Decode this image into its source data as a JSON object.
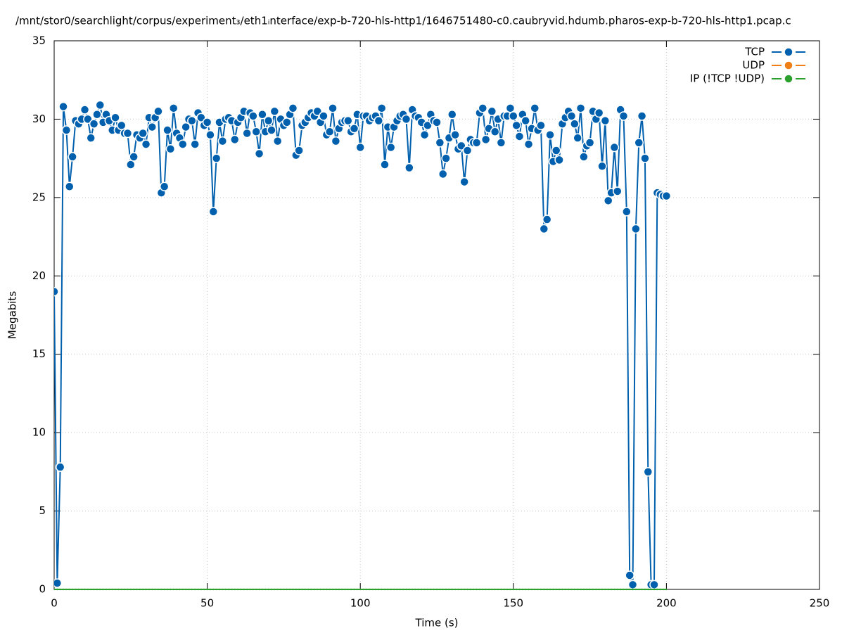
{
  "chart_data": {
    "type": "line",
    "title": "/mnt/stor0/searchlight/corpus/experiment₃/eth1ᵢnterface/exp-b-720-hls-http1/1646751480-c0.caubryvid.hdumb.pharos-exp-b-720-hls-http1.pcap.c",
    "xlabel": "Time (s)",
    "ylabel": "Megabits",
    "xlim": [
      0,
      250
    ],
    "xticks": [
      0,
      50,
      100,
      150,
      200,
      250
    ],
    "ylim": [
      0,
      35
    ],
    "yticks": [
      0,
      5,
      10,
      15,
      20,
      25,
      30,
      35
    ],
    "grid": true,
    "legend": "top-right",
    "x": [
      0,
      1,
      2,
      3,
      4,
      5,
      6,
      7,
      8,
      9,
      10,
      11,
      12,
      13,
      14,
      15,
      16,
      17,
      18,
      19,
      20,
      21,
      22,
      23,
      24,
      25,
      26,
      27,
      28,
      29,
      30,
      31,
      32,
      33,
      34,
      35,
      36,
      37,
      38,
      39,
      40,
      41,
      42,
      43,
      44,
      45,
      46,
      47,
      48,
      49,
      50,
      51,
      52,
      53,
      54,
      55,
      56,
      57,
      58,
      59,
      60,
      61,
      62,
      63,
      64,
      65,
      66,
      67,
      68,
      69,
      70,
      71,
      72,
      73,
      74,
      75,
      76,
      77,
      78,
      79,
      80,
      81,
      82,
      83,
      84,
      85,
      86,
      87,
      88,
      89,
      90,
      91,
      92,
      93,
      94,
      95,
      96,
      97,
      98,
      99,
      100,
      101,
      102,
      103,
      104,
      105,
      106,
      107,
      108,
      109,
      110,
      111,
      112,
      113,
      114,
      115,
      116,
      117,
      118,
      119,
      120,
      121,
      122,
      123,
      124,
      125,
      126,
      127,
      128,
      129,
      130,
      131,
      132,
      133,
      134,
      135,
      136,
      137,
      138,
      139,
      140,
      141,
      142,
      143,
      144,
      145,
      146,
      147,
      148,
      149,
      150,
      151,
      152,
      153,
      154,
      155,
      156,
      157,
      158,
      159,
      160,
      161,
      162,
      163,
      164,
      165,
      166,
      167,
      168,
      169,
      170,
      171,
      172,
      173,
      174,
      175,
      176,
      177,
      178,
      179,
      180,
      181,
      182,
      183,
      184,
      185,
      186,
      187,
      188,
      189,
      190,
      191,
      192,
      193,
      194,
      195,
      196,
      197,
      198,
      199,
      200
    ],
    "series": [
      {
        "name": "TCP",
        "color": "#0060ad",
        "values": [
          19,
          0.4,
          7.8,
          30.8,
          29.3,
          25.7,
          27.6,
          29.9,
          29.7,
          30,
          30.6,
          30,
          28.8,
          29.7,
          30.3,
          30.9,
          29.8,
          30.3,
          29.9,
          29.3,
          30.1,
          29.3,
          29.6,
          29.1,
          29.1,
          27.1,
          27.6,
          29,
          28.8,
          29.1,
          28.4,
          30.1,
          29.5,
          30.1,
          30.5,
          25.3,
          25.7,
          29.3,
          28.1,
          30.7,
          29.1,
          28.8,
          28.4,
          29.5,
          30,
          29.9,
          28.4,
          30.4,
          30.1,
          29.6,
          29.8,
          29,
          24.1,
          27.5,
          29.8,
          28.6,
          30,
          30.1,
          29.9,
          28.7,
          29.8,
          30.1,
          30.5,
          29.1,
          30.4,
          30.2,
          29.2,
          27.8,
          30.3,
          29.2,
          29.9,
          29.3,
          30.5,
          28.6,
          30,
          29.6,
          29.8,
          30.3,
          30.7,
          27.7,
          28,
          29.6,
          29.8,
          30.1,
          30.4,
          30.2,
          30.5,
          29.8,
          30.2,
          29,
          29.2,
          30.7,
          28.6,
          29.4,
          29.8,
          29.9,
          29.9,
          29.2,
          29.4,
          30.3,
          28.2,
          30.2,
          30.2,
          29.9,
          30.1,
          30.2,
          29.9,
          30.7,
          27.1,
          29.5,
          28.2,
          29.5,
          29.9,
          30.2,
          30.3,
          30,
          26.9,
          30.6,
          30.2,
          30.1,
          29.8,
          29,
          29.6,
          30.3,
          29.9,
          29.8,
          28.5,
          26.5,
          27.5,
          28.8,
          30.3,
          29,
          28.1,
          28.3,
          26,
          28,
          28.7,
          28.5,
          28.5,
          30.4,
          30.7,
          28.7,
          29.4,
          30.5,
          29.2,
          30,
          28.5,
          30.2,
          30.2,
          30.7,
          30.2,
          29.6,
          28.9,
          30.3,
          29.9,
          28.4,
          29.4,
          30.7,
          29.3,
          29.6,
          23,
          23.6,
          29,
          27.3,
          28,
          27.4,
          29.7,
          30.1,
          30.5,
          30.2,
          29.7,
          28.8,
          30.7,
          27.6,
          28.3,
          28.5,
          30.5,
          30,
          30.4,
          27,
          29.9,
          24.8,
          25.3,
          28.2,
          25.4,
          30.6,
          30.2,
          24.1,
          0.9,
          0.3,
          23,
          28.5,
          30.2,
          27.5,
          7.5,
          0.3,
          0.3,
          25.3,
          25.2,
          25.1,
          25.1
        ]
      },
      {
        "name": "UDP",
        "color": "#f07f17",
        "values": [
          null,
          null,
          null,
          null,
          null,
          null,
          null,
          null,
          null,
          null,
          null,
          null,
          null,
          null,
          null,
          null,
          null,
          null,
          null,
          null,
          null,
          null,
          null,
          null,
          null,
          null,
          null,
          null,
          null,
          null,
          null,
          null,
          null,
          null,
          null,
          null,
          null,
          null,
          null,
          null,
          null,
          null,
          null,
          null,
          null,
          null,
          null,
          null,
          null,
          null,
          null,
          null,
          null,
          null,
          null,
          null,
          null,
          null,
          null,
          null,
          null,
          null,
          null,
          null,
          null,
          null,
          null,
          null,
          null,
          null,
          null,
          null,
          null,
          null,
          null,
          null,
          null,
          null,
          null,
          null,
          null,
          null,
          null,
          null,
          null,
          null,
          null,
          null,
          null,
          null,
          null,
          null,
          null,
          null,
          null,
          null,
          null,
          null,
          null,
          null,
          null,
          null,
          null,
          null,
          null,
          null,
          null,
          null,
          null,
          null,
          null,
          null,
          null,
          null,
          null,
          null,
          null,
          null,
          null,
          null,
          null,
          null,
          null,
          null,
          null,
          null,
          null,
          null,
          null,
          null,
          null,
          null,
          null,
          null,
          null,
          null,
          null,
          null,
          null,
          null,
          null,
          null,
          null,
          null,
          null,
          null,
          null,
          null,
          null,
          null,
          null,
          null,
          null,
          null,
          null,
          null,
          null,
          null,
          null,
          null,
          null,
          null,
          null,
          null,
          null,
          null,
          null,
          null,
          null,
          null,
          null,
          null,
          null,
          null,
          null,
          null,
          null,
          null,
          null,
          null,
          null,
          null,
          null,
          null,
          null,
          null,
          null,
          null,
          null,
          null,
          null,
          null,
          null,
          null,
          null,
          null,
          null,
          null,
          null,
          null,
          null
        ]
      },
      {
        "name": "IP (!TCP  !UDP)",
        "color": "#2ca02c",
        "values": [
          0,
          0,
          0,
          0,
          0,
          0,
          0,
          0,
          0,
          0,
          0,
          0,
          0,
          0,
          0,
          0,
          0,
          0,
          0,
          0,
          0,
          0,
          0,
          0,
          0,
          0,
          0,
          0,
          0,
          0,
          0,
          0,
          0,
          0,
          0,
          0,
          0,
          0,
          0,
          0,
          0,
          0,
          0,
          0,
          0,
          0,
          0,
          0,
          0,
          0,
          0,
          0,
          0,
          0,
          0,
          0,
          0,
          0,
          0,
          0,
          0,
          0,
          0,
          0,
          0,
          0,
          0,
          0,
          0,
          0,
          0,
          0,
          0,
          0,
          0,
          0,
          0,
          0,
          0,
          0,
          0,
          0,
          0,
          0,
          0,
          0,
          0,
          0,
          0,
          0,
          0,
          0,
          0,
          0,
          0,
          0,
          0,
          0,
          0,
          0,
          0,
          0,
          0,
          0,
          0,
          0,
          0,
          0,
          0,
          0,
          0,
          0,
          0,
          0,
          0,
          0,
          0,
          0,
          0,
          0,
          0,
          0,
          0,
          0,
          0,
          0,
          0,
          0,
          0,
          0,
          0,
          0,
          0,
          0,
          0,
          0,
          0,
          0,
          0,
          0,
          0,
          0,
          0,
          0,
          0,
          0,
          0,
          0,
          0,
          0,
          0,
          0,
          0,
          0,
          0,
          0,
          0,
          0,
          0,
          0,
          0,
          0,
          0,
          0,
          0,
          0,
          0,
          0,
          0,
          0,
          0,
          0,
          0,
          0,
          0,
          0,
          0,
          0,
          0,
          0,
          0,
          0,
          0,
          0,
          0,
          0,
          0,
          0,
          0,
          0,
          0,
          0,
          0,
          0,
          0,
          0,
          0,
          0,
          0,
          0,
          0
        ]
      }
    ]
  }
}
